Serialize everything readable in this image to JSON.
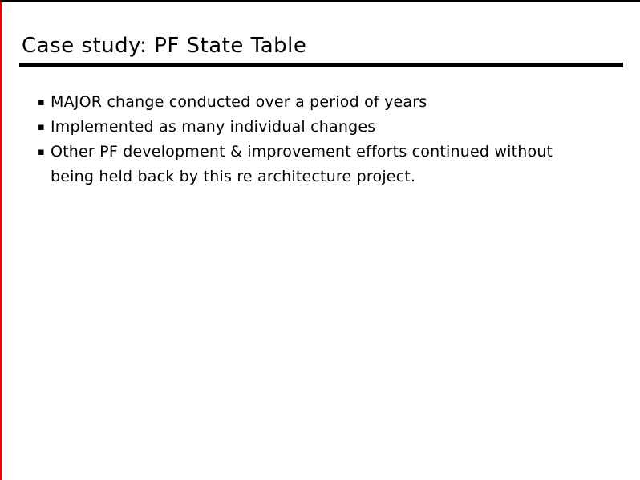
{
  "slide": {
    "title": "Case study: PF State Table",
    "bullet_marker": "▪",
    "bullets": [
      "MAJOR change conducted over a period of years",
      "Implemented as many individual changes",
      "Other PF development & improvement efforts continued without being held back by this re architecture project."
    ]
  },
  "colors": {
    "background": "#ffffff",
    "text": "#000000",
    "top_bar": "#000000",
    "title_rule": "#000000",
    "left_accent_line": "#ee0000"
  }
}
